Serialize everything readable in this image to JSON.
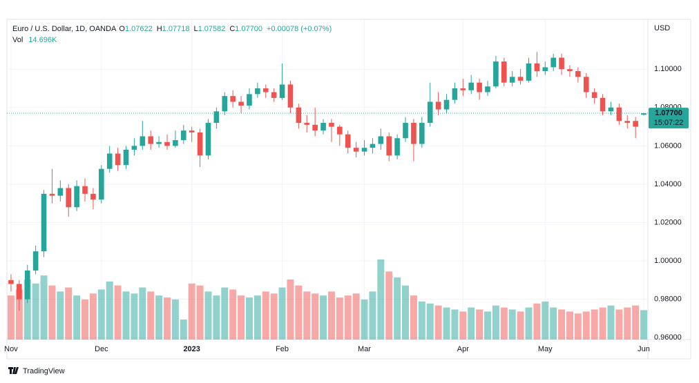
{
  "header": {
    "title": "Euro / U.S. Dollar, 1D, OANDA",
    "o_label": "O",
    "o": "1.07622",
    "h_label": "H",
    "h": "1.07718",
    "l_label": "L",
    "l": "1.07582",
    "c_label": "C",
    "c": "1.07700",
    "change": "+0.00078 (+0.07%)",
    "vol_label": "Vol",
    "vol": "14.696K"
  },
  "footer": {
    "brand": "TradingView"
  },
  "chart_data": {
    "type": "candlestick",
    "currency": "USD",
    "last_price_label": "1.07700",
    "countdown": "15:07:22",
    "up_color": "#26a69a",
    "down_color": "#ef5350",
    "grid": true,
    "categories": [
      null,
      null,
      null,
      null,
      null,
      null,
      null,
      null,
      null,
      null,
      null,
      null,
      null,
      null,
      null,
      null,
      null,
      null,
      null,
      null,
      null,
      null,
      null,
      null,
      null,
      null,
      null,
      null,
      null,
      null,
      null,
      null,
      null,
      null,
      null,
      null,
      null,
      null,
      null,
      null,
      null,
      null,
      null,
      null,
      null,
      null,
      null,
      null,
      null,
      null,
      null,
      null,
      null,
      null,
      null,
      null,
      null,
      null,
      null,
      null,
      null,
      null,
      null,
      null,
      null,
      null,
      null,
      null,
      null,
      null,
      null,
      null,
      null,
      null,
      null,
      null,
      null,
      null
    ],
    "xticks": [
      {
        "value": 0,
        "label": "Nov"
      },
      {
        "value": 11,
        "label": "Dec"
      },
      {
        "value": 22,
        "label": "2023"
      },
      {
        "value": 33,
        "label": "Feb"
      },
      {
        "value": 43,
        "label": "Mar"
      },
      {
        "value": 55,
        "label": "Apr"
      },
      {
        "value": 65,
        "label": "May"
      },
      {
        "value": 77,
        "label": "Jun"
      }
    ],
    "ylim": [
      0.959,
      1.126
    ],
    "yticks": [
      {
        "value": 0.96,
        "label": "0.96000"
      },
      {
        "value": 0.98,
        "label": "0.98000"
      },
      {
        "value": 1.0,
        "label": "1.00000"
      },
      {
        "value": 1.02,
        "label": "1.02000"
      },
      {
        "value": 1.04,
        "label": "1.04000"
      },
      {
        "value": 1.06,
        "label": "1.06000"
      },
      {
        "value": 1.08,
        "label": "1.08000"
      },
      {
        "value": 1.1,
        "label": "1.10000"
      }
    ],
    "open": [
      0.99,
      0.988,
      0.98,
      0.995,
      1.005,
      1.035,
      1.034,
      1.038,
      1.028,
      1.039,
      1.035,
      1.032,
      1.048,
      1.056,
      1.05,
      1.058,
      1.06,
      1.065,
      1.061,
      1.062,
      1.06,
      1.063,
      1.068,
      1.067,
      1.055,
      1.072,
      1.078,
      1.086,
      1.083,
      1.081,
      1.087,
      1.09,
      1.088,
      1.085,
      1.092,
      1.08,
      1.072,
      1.071,
      1.068,
      1.072,
      1.07,
      1.066,
      1.059,
      1.057,
      1.059,
      1.061,
      1.065,
      1.055,
      1.064,
      1.072,
      1.061,
      1.072,
      1.083,
      1.079,
      1.084,
      1.09,
      1.089,
      1.093,
      1.088,
      1.091,
      1.104,
      1.093,
      1.096,
      1.094,
      1.103,
      1.099,
      1.101,
      1.106,
      1.1,
      1.099,
      1.096,
      1.088,
      1.085,
      1.078,
      1.08,
      1.073,
      1.073,
      1.07622
    ],
    "high": [
      0.993,
      0.99,
      0.998,
      1.008,
      1.037,
      1.048,
      1.042,
      1.04,
      1.042,
      1.043,
      1.038,
      1.05,
      1.06,
      1.059,
      1.06,
      1.064,
      1.073,
      1.068,
      1.065,
      1.066,
      1.068,
      1.071,
      1.07,
      1.069,
      1.074,
      1.08,
      1.088,
      1.089,
      1.086,
      1.09,
      1.093,
      1.092,
      1.09,
      1.103,
      1.094,
      1.082,
      1.076,
      1.08,
      1.074,
      1.074,
      1.071,
      1.068,
      1.062,
      1.063,
      1.064,
      1.069,
      1.067,
      1.066,
      1.075,
      1.074,
      1.075,
      1.093,
      1.088,
      1.087,
      1.093,
      1.095,
      1.097,
      1.095,
      1.094,
      1.107,
      1.106,
      1.099,
      1.1,
      1.106,
      1.109,
      1.104,
      1.108,
      1.108,
      1.102,
      1.101,
      1.098,
      1.09,
      1.087,
      1.083,
      1.082,
      1.076,
      1.075,
      1.07718
    ],
    "low": [
      0.984,
      0.974,
      0.978,
      0.993,
      1.002,
      1.03,
      1.031,
      1.023,
      1.026,
      1.031,
      1.027,
      1.03,
      1.046,
      1.047,
      1.048,
      1.055,
      1.058,
      1.058,
      1.059,
      1.058,
      1.059,
      1.061,
      1.062,
      1.049,
      1.053,
      1.069,
      1.076,
      1.08,
      1.077,
      1.079,
      1.085,
      1.085,
      1.083,
      1.084,
      1.077,
      1.069,
      1.067,
      1.065,
      1.066,
      1.062,
      1.06,
      1.056,
      1.054,
      1.055,
      1.056,
      1.058,
      1.052,
      1.053,
      1.062,
      1.052,
      1.059,
      1.07,
      1.076,
      1.077,
      1.082,
      1.086,
      1.087,
      1.084,
      1.086,
      1.09,
      1.091,
      1.091,
      1.092,
      1.093,
      1.096,
      1.097,
      1.099,
      1.097,
      1.096,
      1.093,
      1.085,
      1.082,
      1.076,
      1.076,
      1.071,
      1.069,
      1.064,
      1.07582
    ],
    "close": [
      0.988,
      0.98,
      0.995,
      1.005,
      1.035,
      1.034,
      1.038,
      1.028,
      1.039,
      1.035,
      1.032,
      1.048,
      1.056,
      1.05,
      1.058,
      1.06,
      1.065,
      1.061,
      1.062,
      1.06,
      1.063,
      1.068,
      1.067,
      1.055,
      1.072,
      1.078,
      1.086,
      1.083,
      1.081,
      1.087,
      1.09,
      1.088,
      1.085,
      1.092,
      1.08,
      1.072,
      1.071,
      1.068,
      1.072,
      1.07,
      1.066,
      1.059,
      1.057,
      1.059,
      1.061,
      1.065,
      1.055,
      1.064,
      1.072,
      1.061,
      1.072,
      1.083,
      1.079,
      1.084,
      1.09,
      1.089,
      1.093,
      1.088,
      1.091,
      1.104,
      1.093,
      1.096,
      1.094,
      1.103,
      1.099,
      1.101,
      1.106,
      1.1,
      1.099,
      1.096,
      1.088,
      1.085,
      1.078,
      1.08,
      1.073,
      1.072,
      1.07,
      1.077
    ],
    "volume_lim": [
      0,
      40
    ],
    "volume": [
      22,
      25,
      30,
      28,
      32,
      27,
      24,
      26,
      22,
      20,
      23,
      25,
      29,
      27,
      24,
      23,
      26,
      24,
      22,
      21,
      20,
      10,
      28,
      27,
      24,
      22,
      26,
      25,
      22,
      21,
      22,
      24,
      23,
      26,
      30,
      27,
      24,
      23,
      22,
      24,
      21,
      22,
      23,
      20,
      24,
      40,
      34,
      31,
      27,
      22,
      19,
      18,
      17,
      16,
      15,
      14,
      16,
      15,
      14,
      17,
      16,
      15,
      14,
      16,
      18,
      19,
      16,
      15,
      14,
      13,
      14,
      15,
      16,
      17,
      15,
      16,
      17,
      14.696
    ]
  }
}
